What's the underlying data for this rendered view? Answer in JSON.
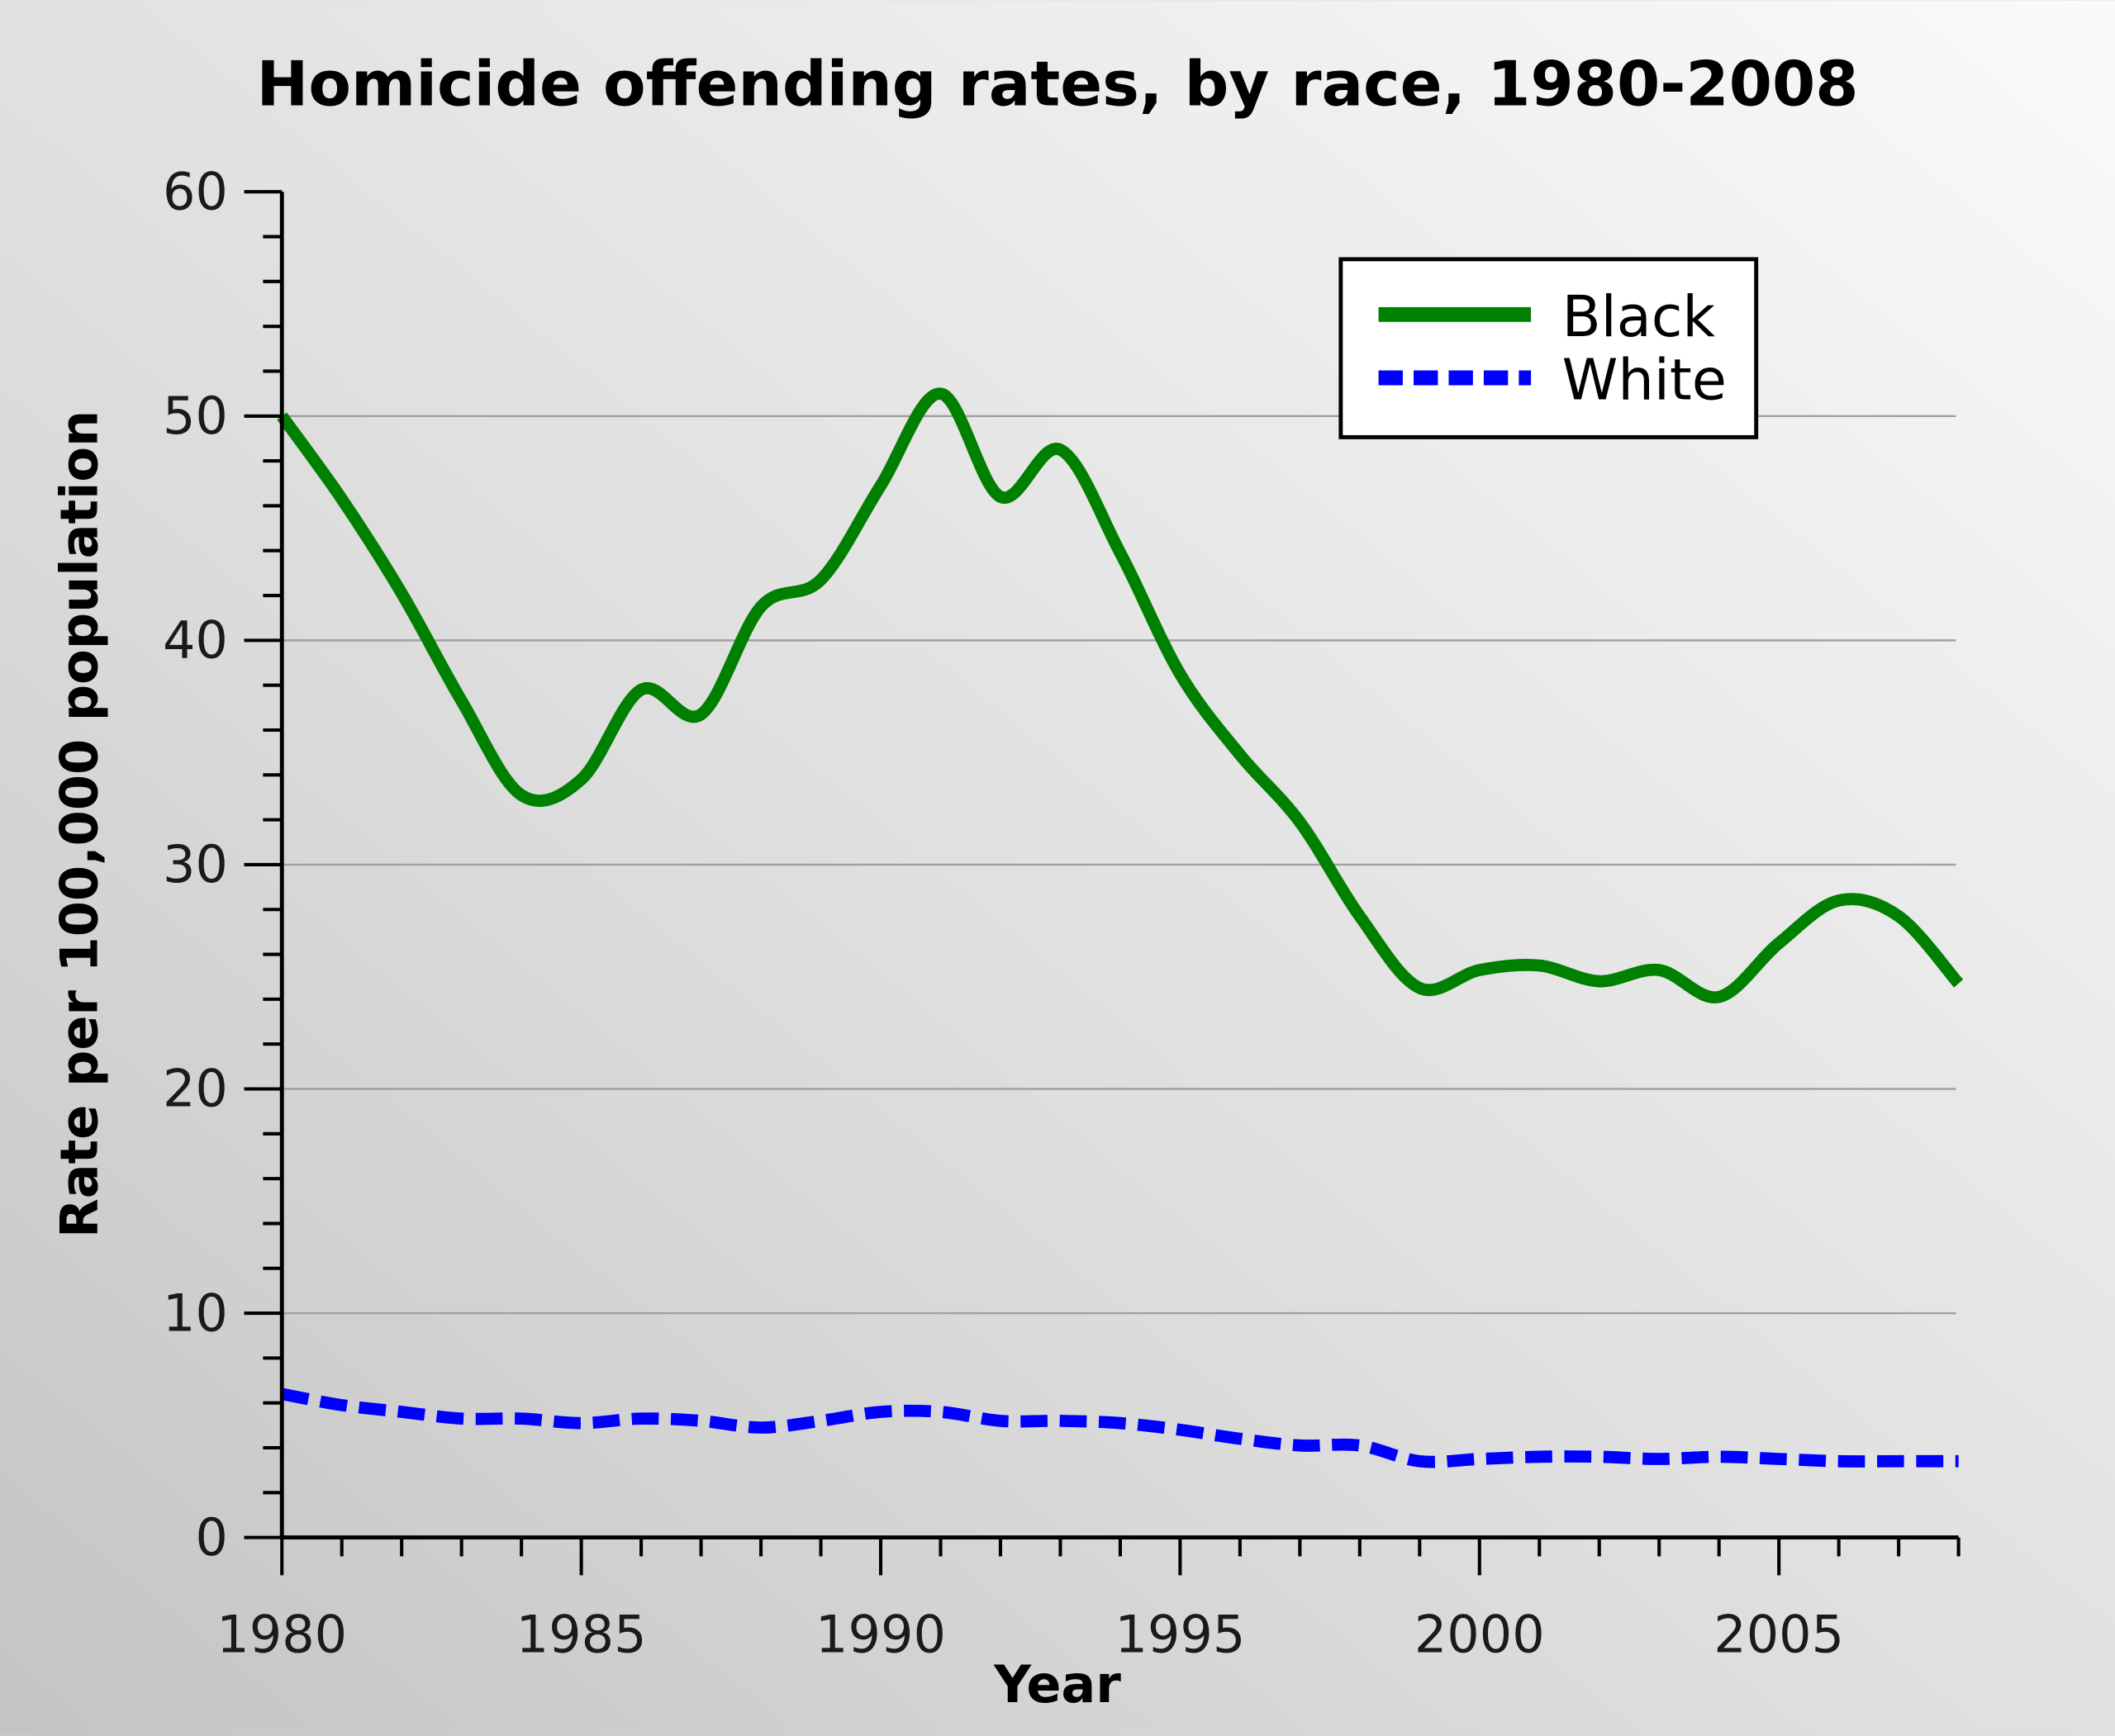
{
  "chart_data": {
    "type": "line",
    "title": "Homicide offending rates, by race, 1980-2008",
    "xlabel": "Year",
    "ylabel": "Rate per 100,000 population",
    "xlim": [
      1980,
      2008
    ],
    "ylim": [
      0,
      60
    ],
    "x_ticks": [
      1980,
      1985,
      1990,
      1995,
      2000,
      2005
    ],
    "x_tick_labels": [
      "1980",
      "1985",
      "1990",
      "1995",
      "2000",
      "2005"
    ],
    "y_ticks": [
      0,
      10,
      20,
      30,
      40,
      50,
      60
    ],
    "y_tick_labels": [
      "0",
      "10",
      "20",
      "30",
      "40",
      "50",
      "60"
    ],
    "grid": "horizontal",
    "legend_position": "top-right",
    "x": [
      1980,
      1981,
      1982,
      1983,
      1984,
      1985,
      1986,
      1987,
      1988,
      1989,
      1990,
      1991,
      1992,
      1993,
      1994,
      1995,
      1996,
      1997,
      1998,
      1999,
      2000,
      2001,
      2002,
      2003,
      2004,
      2005,
      2006,
      2007,
      2008
    ],
    "series": [
      {
        "name": "Black",
        "color": "#008000",
        "style": "solid",
        "values": [
          50.0,
          46.3,
          42.1,
          37.3,
          33.1,
          33.8,
          37.8,
          36.7,
          41.5,
          42.7,
          46.9,
          51.0,
          46.4,
          48.5,
          43.9,
          38.5,
          34.9,
          31.9,
          27.7,
          24.5,
          25.3,
          25.5,
          24.8,
          25.3,
          24.1,
          26.5,
          28.4,
          27.7,
          24.7
        ]
      },
      {
        "name": "White",
        "color": "#0000ff",
        "style": "dashed",
        "values": [
          6.4,
          5.9,
          5.6,
          5.3,
          5.3,
          5.1,
          5.3,
          5.2,
          4.9,
          5.2,
          5.6,
          5.6,
          5.2,
          5.2,
          5.1,
          4.8,
          4.4,
          4.1,
          4.1,
          3.4,
          3.5,
          3.6,
          3.6,
          3.5,
          3.6,
          3.5,
          3.4,
          3.4,
          3.4
        ]
      }
    ]
  }
}
